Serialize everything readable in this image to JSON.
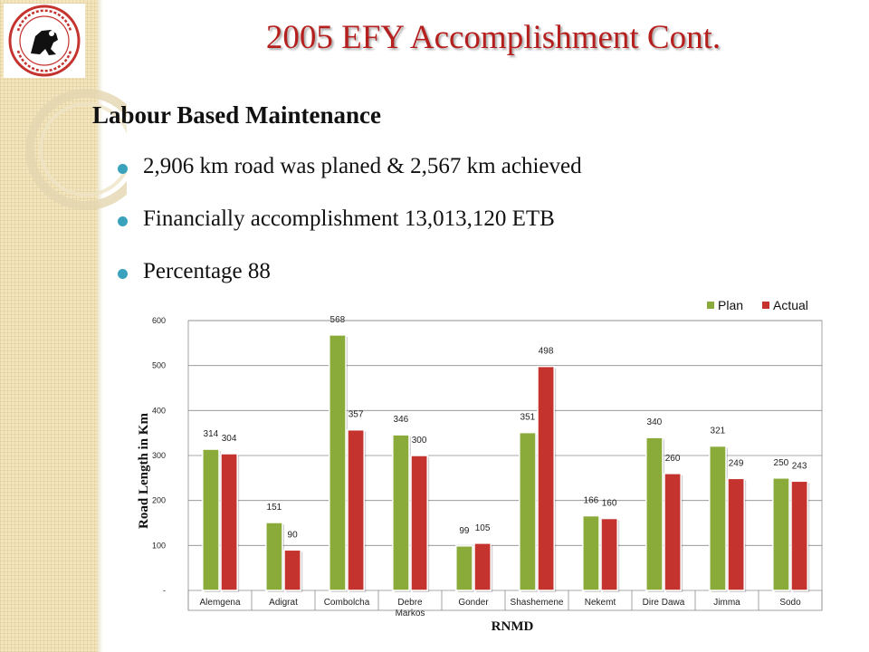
{
  "slide": {
    "title": "2005 EFY Accomplishment  Cont.",
    "subtitle": "Labour Based Maintenance",
    "bullets": [
      "2,906 km road was planed & 2,567 km achieved",
      "Financially accomplishment  13,013,120 ETB",
      "Percentage 88"
    ]
  },
  "colors": {
    "title": "#b5201f",
    "bullet": "#3aa2bc",
    "plan": "#8aab3a",
    "actual": "#c4332e"
  },
  "chart_data": {
    "type": "bar",
    "categories": [
      "Alemgena",
      "Adigrat",
      "Combolcha",
      "Debre Markos",
      "Gonder",
      "Shashemene",
      "Nekemt",
      "Dire Dawa",
      "Jimma",
      "Sodo"
    ],
    "series": [
      {
        "name": "Plan",
        "values": [
          314,
          151,
          568,
          346,
          99,
          351,
          166,
          340,
          321,
          250
        ]
      },
      {
        "name": "Actual",
        "values": [
          304,
          90,
          357,
          300,
          105,
          498,
          160,
          260,
          249,
          243
        ]
      }
    ],
    "xlabel": "RNMD",
    "ylabel": "Road Length in Km",
    "ylim": [
      0,
      600
    ],
    "yticks": [
      0,
      100,
      200,
      300,
      400,
      500,
      600
    ],
    "ytick_labels": [
      "-",
      "100",
      "200",
      "300",
      "400",
      "500",
      "600"
    ],
    "grid": true,
    "legend": "top-right"
  }
}
